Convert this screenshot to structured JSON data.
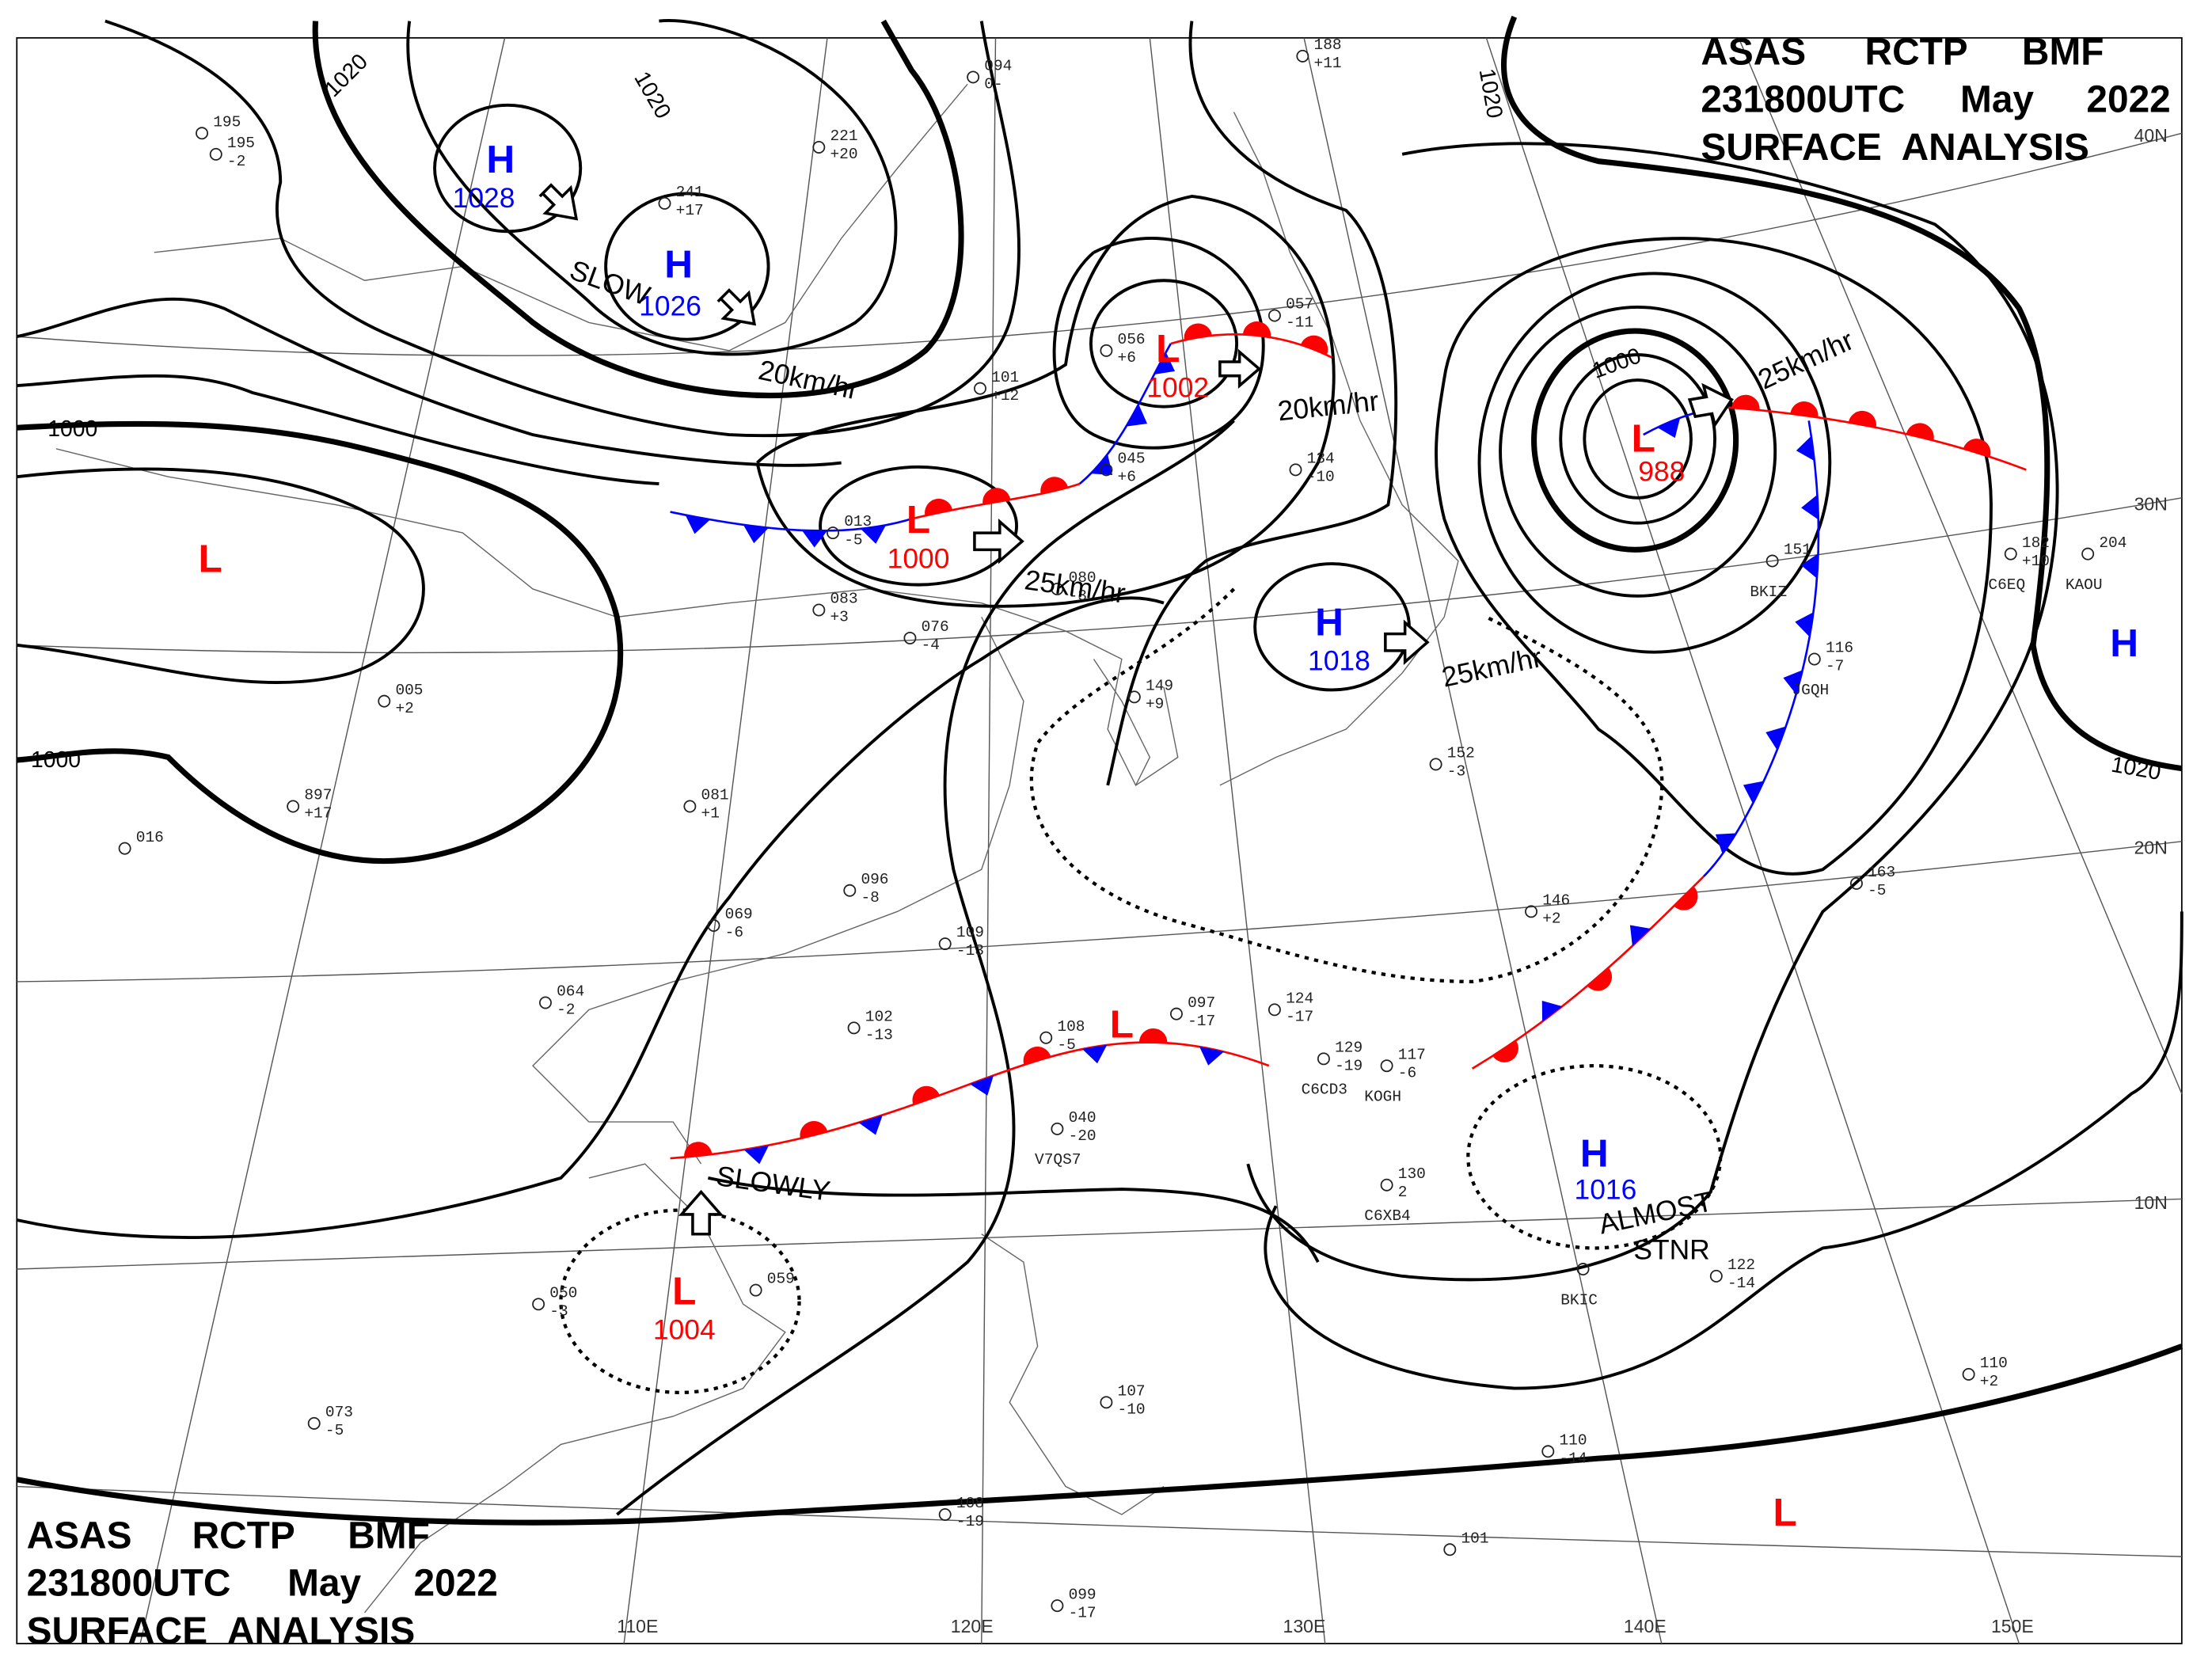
{
  "title_top": {
    "line1": [
      "ASAS",
      "RCTP",
      "BMF"
    ],
    "line2": [
      "231800UTC",
      "May",
      "2022"
    ],
    "line3": "SURFACE  ANALYSIS"
  },
  "title_bottom": {
    "line1": [
      "ASAS",
      "RCTP",
      "BMF"
    ],
    "line2": [
      "231800UTC",
      "May",
      "2022"
    ],
    "line3": "SURFACE  ANALYSIS"
  },
  "colors": {
    "high": "#0000ff",
    "low": "#ff0000",
    "cold_front": "#0000ff",
    "warm_front": "#ff0000",
    "isobar": "#000000"
  },
  "latitude_labels": [
    "40N",
    "30N",
    "20N",
    "10N"
  ],
  "longitude_labels": [
    "110E",
    "120E",
    "130E",
    "140E",
    "150E"
  ],
  "pressure_centers": [
    {
      "type": "H",
      "value": "1028"
    },
    {
      "type": "H",
      "value": "1026"
    },
    {
      "type": "L",
      "value": ""
    },
    {
      "type": "L",
      "value": "1000"
    },
    {
      "type": "L",
      "value": "1002"
    },
    {
      "type": "L",
      "value": "988"
    },
    {
      "type": "H",
      "value": "1018"
    },
    {
      "type": "H",
      "value": ""
    },
    {
      "type": "L",
      "value": "1004"
    },
    {
      "type": "H",
      "value": "1016"
    },
    {
      "type": "L",
      "value": ""
    },
    {
      "type": "L",
      "value": ""
    }
  ],
  "movement_labels": [
    "SLOW",
    "20km/hr",
    "25km/hr",
    "20km/hr",
    "25km/hr",
    "25km/hr",
    "SLOWLY",
    "ALMOST",
    "STNR"
  ],
  "isobar_labels": [
    "1020",
    "1020",
    "1000",
    "1000",
    "1000",
    "1020",
    "1020"
  ],
  "stations": [
    {
      "id": "",
      "text": [
        "094",
        "0-"
      ]
    },
    {
      "id": "",
      "text": [
        "188",
        "+11"
      ]
    },
    {
      "id": "",
      "text": [
        "195",
        "-2"
      ]
    },
    {
      "id": "",
      "text": [
        "221",
        "+20"
      ]
    },
    {
      "id": "",
      "text": [
        "241",
        "+17"
      ]
    },
    {
      "id": "",
      "text": [
        "056",
        "+6"
      ]
    },
    {
      "id": "",
      "text": [
        "057",
        "-11"
      ]
    },
    {
      "id": "",
      "text": [
        "101",
        "+12"
      ]
    },
    {
      "id": "",
      "text": [
        "045",
        "+6"
      ]
    },
    {
      "id": "",
      "text": [
        "134",
        "-10"
      ]
    },
    {
      "id": "",
      "text": [
        "013",
        "-5"
      ]
    },
    {
      "id": "",
      "text": [
        "080",
        "-3"
      ]
    },
    {
      "id": "",
      "text": [
        "083",
        "+3"
      ]
    },
    {
      "id": "",
      "text": [
        "076",
        "-4"
      ]
    },
    {
      "id": "",
      "text": [
        "149",
        "+9"
      ]
    },
    {
      "id": "",
      "text": [
        "005",
        "+2"
      ]
    },
    {
      "id": "",
      "text": [
        "081",
        "+1"
      ]
    },
    {
      "id": "",
      "text": [
        "096",
        "-8"
      ]
    },
    {
      "id": "",
      "text": [
        "146",
        "+2"
      ]
    },
    {
      "id": "",
      "text": [
        "152",
        "-3"
      ]
    },
    {
      "id": "C6CD3",
      "text": [
        "129",
        "-19"
      ]
    },
    {
      "id": "KOGH",
      "text": [
        "117",
        "-6"
      ]
    },
    {
      "id": "C6XB4",
      "text": [
        "130",
        "2"
      ]
    },
    {
      "id": "BKIC",
      "text": [
        "",
        ""
      ]
    },
    {
      "id": "",
      "text": [
        "122",
        "-14"
      ]
    },
    {
      "id": "BKIZ",
      "text": [
        "151",
        ""
      ]
    },
    {
      "id": "JGQH",
      "text": [
        "116",
        "-7"
      ]
    },
    {
      "id": "C6EQ",
      "text": [
        "182",
        "+10"
      ]
    },
    {
      "id": "KAOU",
      "text": [
        "204",
        ""
      ]
    },
    {
      "id": "V7QS7",
      "text": [
        "040",
        "-20"
      ]
    },
    {
      "id": "",
      "text": [
        "163",
        "-5"
      ]
    },
    {
      "id": "",
      "text": [
        "110",
        "+2"
      ]
    },
    {
      "id": "",
      "text": [
        "110",
        "-14"
      ]
    },
    {
      "id": "",
      "text": [
        "101",
        ""
      ]
    },
    {
      "id": "",
      "text": [
        "108",
        "-19"
      ]
    },
    {
      "id": "",
      "text": [
        "099",
        "-17"
      ]
    },
    {
      "id": "",
      "text": [
        "107",
        "-10"
      ]
    },
    {
      "id": "",
      "text": [
        "073",
        "-5"
      ]
    },
    {
      "id": "",
      "text": [
        "050",
        "-3"
      ]
    },
    {
      "id": "",
      "text": [
        "059",
        ""
      ]
    },
    {
      "id": "",
      "text": [
        "102",
        "-13"
      ]
    },
    {
      "id": "",
      "text": [
        "108",
        "-5"
      ]
    },
    {
      "id": "",
      "text": [
        "097",
        "-17"
      ]
    },
    {
      "id": "",
      "text": [
        "124",
        "-17"
      ]
    },
    {
      "id": "",
      "text": [
        "016",
        ""
      ]
    },
    {
      "id": "",
      "text": [
        "897",
        "+17"
      ]
    },
    {
      "id": "",
      "text": [
        "064",
        "-2"
      ]
    },
    {
      "id": "",
      "text": [
        "069",
        "-6"
      ]
    },
    {
      "id": "",
      "text": [
        "109",
        "-13"
      ]
    },
    {
      "id": "",
      "text": [
        "195",
        ""
      ]
    }
  ]
}
